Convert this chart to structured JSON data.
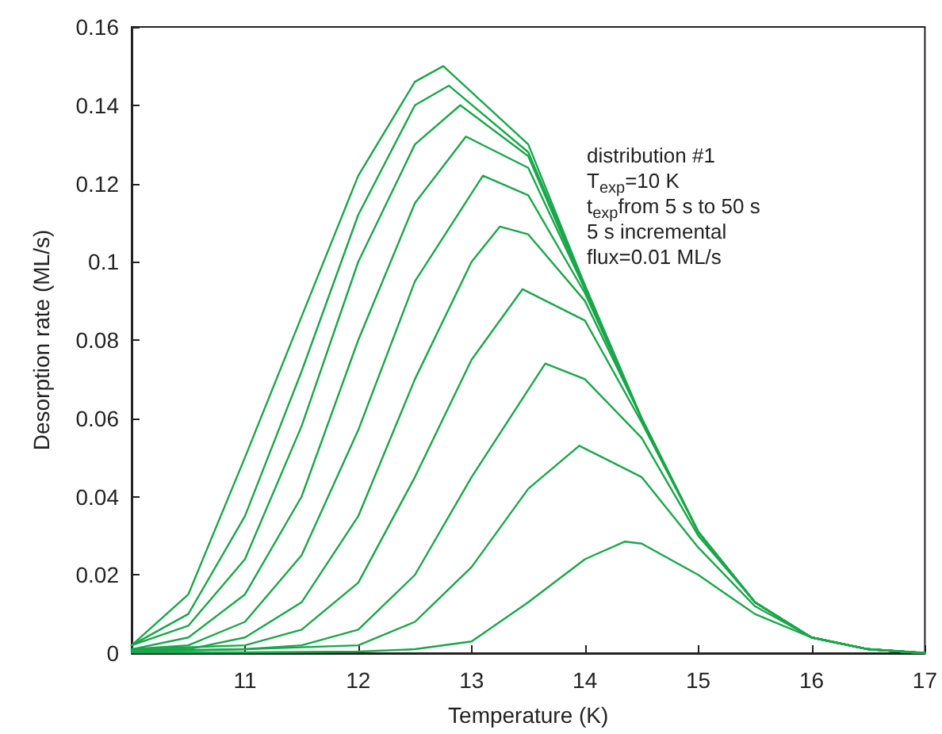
{
  "chart_data": {
    "type": "line",
    "xlabel": "Temperature (K)",
    "ylabel": "Desorption rate (ML/s)",
    "xlim": [
      10,
      17
    ],
    "xticks": [
      11,
      12,
      13,
      14,
      15,
      16,
      17
    ],
    "ylim": [
      0,
      0.16
    ],
    "yticks": [
      0,
      0.02,
      0.04,
      0.06,
      0.08,
      0.1,
      0.12,
      0.14,
      0.16
    ],
    "grid": false,
    "marker": "none",
    "line_style": "solid",
    "annotations": [
      "distribution #1",
      "T$_{exp}$=10 K",
      "t$_{exp}$from 5 s to 50 s",
      "5 s incremental",
      "flux=0.01 ML/s"
    ],
    "series": [
      {
        "color": "#1aa64a",
        "x": [
          10,
          11,
          12,
          12.5,
          13,
          13.5,
          14,
          14.35,
          14.5,
          15,
          15.5,
          16,
          16.5,
          17
        ],
        "values": [
          0.0002,
          0.0002,
          0.0004,
          0.001,
          0.003,
          0.013,
          0.024,
          0.0285,
          0.028,
          0.02,
          0.01,
          0.004,
          0.001,
          0.0001
        ]
      },
      {
        "color": "#1aa64a",
        "x": [
          10,
          11,
          12,
          12.5,
          13,
          13.5,
          13.95,
          14.5,
          15,
          15.5,
          16,
          16.5,
          17
        ],
        "values": [
          0.0005,
          0.001,
          0.002,
          0.008,
          0.022,
          0.042,
          0.053,
          0.045,
          0.027,
          0.012,
          0.004,
          0.001,
          0
        ]
      },
      {
        "color": "#1aa64a",
        "x": [
          10,
          11,
          11.5,
          12,
          12.5,
          13,
          13.65,
          14,
          14.5,
          15,
          15.5,
          16,
          16.5,
          17
        ],
        "values": [
          0.0005,
          0.001,
          0.002,
          0.006,
          0.02,
          0.045,
          0.074,
          0.07,
          0.055,
          0.03,
          0.013,
          0.004,
          0.001,
          0
        ]
      },
      {
        "color": "#1aa64a",
        "x": [
          10,
          11,
          11.5,
          12,
          12.5,
          13,
          13.45,
          14,
          14.5,
          15,
          15.5,
          16,
          16.5,
          17
        ],
        "values": [
          0.001,
          0.002,
          0.006,
          0.018,
          0.045,
          0.075,
          0.093,
          0.085,
          0.059,
          0.031,
          0.013,
          0.004,
          0.001,
          0
        ]
      },
      {
        "color": "#1aa64a",
        "x": [
          10,
          10.5,
          11,
          11.5,
          12,
          12.5,
          13,
          13.25,
          13.5,
          14,
          14.5,
          15,
          15.5,
          16,
          16.5,
          17
        ],
        "values": [
          0.001,
          0.001,
          0.004,
          0.013,
          0.035,
          0.07,
          0.1,
          0.109,
          0.107,
          0.09,
          0.06,
          0.031,
          0.013,
          0.004,
          0.001,
          0
        ]
      },
      {
        "color": "#1aa64a",
        "x": [
          10,
          10.5,
          11,
          11.5,
          12,
          12.5,
          13.1,
          13.5,
          14,
          14.5,
          15,
          15.5,
          16,
          16.5,
          17
        ],
        "values": [
          0.001,
          0.002,
          0.008,
          0.025,
          0.057,
          0.095,
          0.122,
          0.117,
          0.092,
          0.06,
          0.031,
          0.013,
          0.004,
          0.001,
          0
        ]
      },
      {
        "color": "#1aa64a",
        "x": [
          10,
          10.5,
          11,
          11.5,
          12,
          12.5,
          12.95,
          13.5,
          14,
          14.5,
          15,
          15.5,
          16,
          16.5,
          17
        ],
        "values": [
          0.001,
          0.004,
          0.015,
          0.04,
          0.08,
          0.115,
          0.132,
          0.124,
          0.093,
          0.06,
          0.031,
          0.013,
          0.004,
          0.001,
          0
        ]
      },
      {
        "color": "#1aa64a",
        "x": [
          10,
          10.5,
          11,
          11.5,
          12,
          12.5,
          12.9,
          13.5,
          14,
          14.5,
          15,
          15.5,
          16,
          16.5,
          17
        ],
        "values": [
          0.002,
          0.007,
          0.024,
          0.058,
          0.1,
          0.13,
          0.14,
          0.127,
          0.093,
          0.06,
          0.031,
          0.013,
          0.004,
          0.001,
          0
        ]
      },
      {
        "color": "#1aa64a",
        "x": [
          10,
          10.5,
          11,
          11.5,
          12,
          12.5,
          12.8,
          13.5,
          14,
          14.5,
          15,
          15.5,
          16,
          16.5,
          17
        ],
        "values": [
          0.002,
          0.01,
          0.035,
          0.072,
          0.112,
          0.14,
          0.145,
          0.128,
          0.094,
          0.06,
          0.031,
          0.013,
          0.004,
          0.001,
          0
        ]
      },
      {
        "color": "#1aa64a",
        "x": [
          10,
          10.5,
          11,
          11.5,
          12,
          12.5,
          12.75,
          13.5,
          14,
          14.5,
          15,
          15.5,
          16,
          16.5,
          17
        ],
        "values": [
          0.002,
          0.015,
          0.05,
          0.086,
          0.122,
          0.146,
          0.15,
          0.13,
          0.094,
          0.06,
          0.031,
          0.013,
          0.004,
          0.001,
          0
        ]
      }
    ]
  }
}
